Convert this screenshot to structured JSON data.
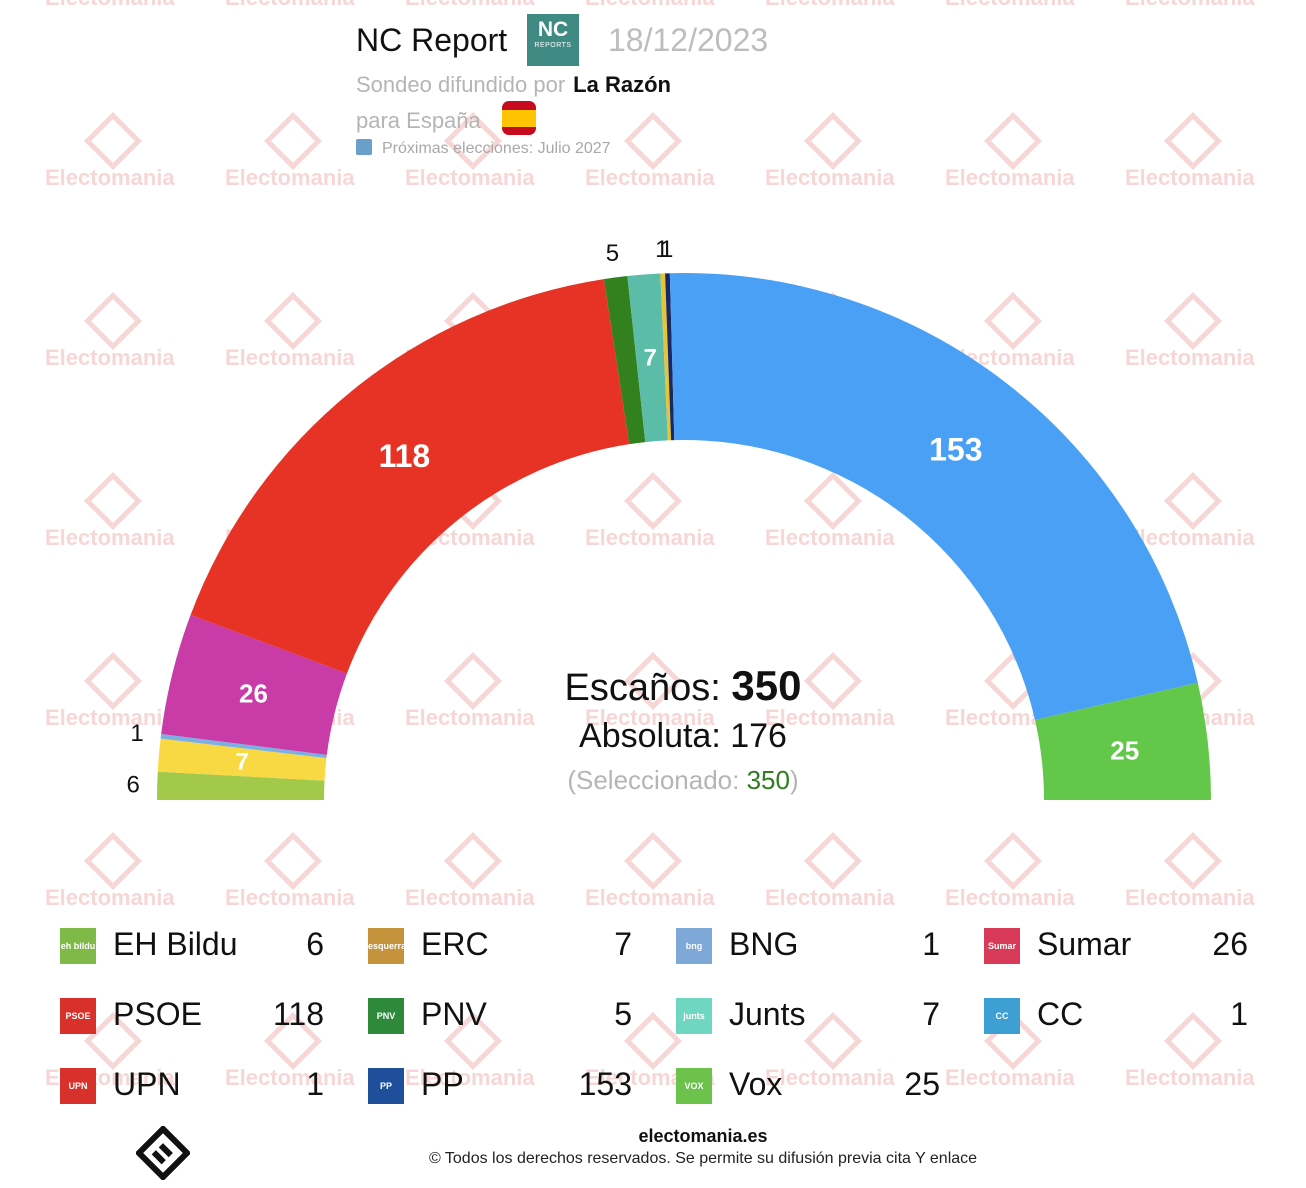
{
  "header": {
    "pollster": "NC Report",
    "logo_big": "NC",
    "logo_small": "REPORTS",
    "date": "18/12/2023",
    "published_by_label": "Sondeo difundido por",
    "media": "La Razón",
    "scope": "para España",
    "next_elections": "Próximas elecciones: Julio 2027"
  },
  "watermark": {
    "text": "Electomania"
  },
  "center": {
    "seats_label": "Escaños:",
    "seats_total": "350",
    "majority": "Absoluta: 176",
    "selected_open": "(Seleccionado:",
    "selected_value": "350",
    "selected_close": ")"
  },
  "chart_data": {
    "type": "parliament-semicircle",
    "total_seats": 350,
    "majority": 176,
    "selected": 350,
    "segments": [
      {
        "party": "EH Bildu",
        "seats": 6,
        "color": "#a3c94a"
      },
      {
        "party": "ERC",
        "seats": 7,
        "color": "#f8d843"
      },
      {
        "party": "BNG",
        "seats": 1,
        "color": "#7cb0e3"
      },
      {
        "party": "Sumar",
        "seats": 26,
        "color": "#c93ba6"
      },
      {
        "party": "PSOE",
        "seats": 118,
        "color": "#e73325"
      },
      {
        "party": "PNV",
        "seats": 5,
        "color": "#33801f"
      },
      {
        "party": "Junts",
        "seats": 7,
        "color": "#5bbda7"
      },
      {
        "party": "CC",
        "seats": 1,
        "color": "#e7c33a"
      },
      {
        "party": "UPN",
        "seats": 1,
        "color": "#182a66"
      },
      {
        "party": "PP",
        "seats": 153,
        "color": "#4aa0f5"
      },
      {
        "party": "Vox",
        "seats": 25,
        "color": "#63c84a"
      }
    ]
  },
  "legend": [
    {
      "name": "EH Bildu",
      "value": "6",
      "logo_color": "#7fb947",
      "logo_text": "eh bildu"
    },
    {
      "name": "ERC",
      "value": "7",
      "logo_color": "#c4933c",
      "logo_text": "esquerra"
    },
    {
      "name": "BNG",
      "value": "1",
      "logo_color": "#7ea8d8",
      "logo_text": "bng"
    },
    {
      "name": "Sumar",
      "value": "26",
      "logo_color": "#d83a57",
      "logo_text": "Sumar"
    },
    {
      "name": "PSOE",
      "value": "118",
      "logo_color": "#d8302a",
      "logo_text": "PSOE"
    },
    {
      "name": "PNV",
      "value": "5",
      "logo_color": "#2e8a3a",
      "logo_text": "PNV"
    },
    {
      "name": "Junts",
      "value": "7",
      "logo_color": "#6fd6c2",
      "logo_text": "junts"
    },
    {
      "name": "CC",
      "value": "1",
      "logo_color": "#3d9fd2",
      "logo_text": "CC"
    },
    {
      "name": "UPN",
      "value": "1",
      "logo_color": "#d8302a",
      "logo_text": "UPN"
    },
    {
      "name": "PP",
      "value": "153",
      "logo_color": "#1f4f9b",
      "logo_text": "PP"
    },
    {
      "name": "Vox",
      "value": "25",
      "logo_color": "#6cc24a",
      "logo_text": "VOX"
    }
  ],
  "footer": {
    "site": "electomania.es",
    "copyright": "© Todos los derechos reservados. Se permite su difusión previa cita Y enlace"
  }
}
